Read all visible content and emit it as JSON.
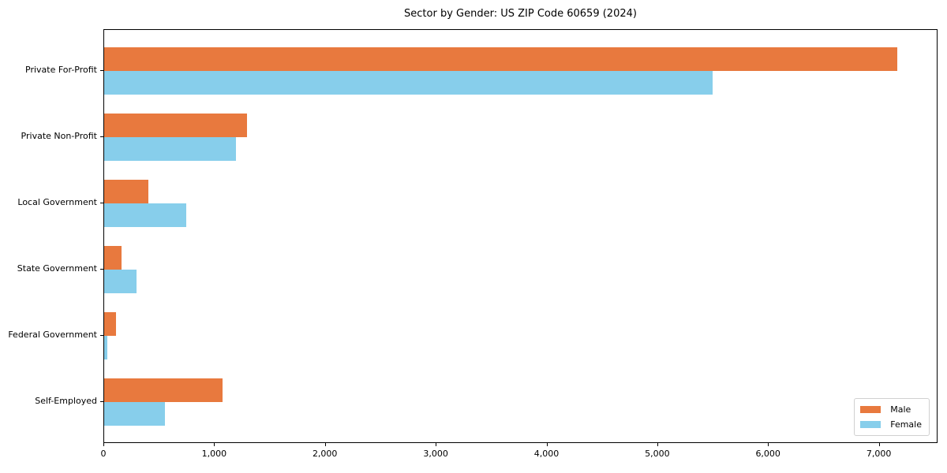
{
  "title": "Sector by Gender: US ZIP Code 60659 (2024)",
  "colors": {
    "male": "#E8793E",
    "female": "#87CEEB",
    "spine": "#000000",
    "legend_border": "#D0D0D0",
    "background": "#FFFFFF"
  },
  "chart_data": {
    "type": "bar",
    "orientation": "horizontal",
    "title": "Sector by Gender: US ZIP Code 60659 (2024)",
    "xlabel": "",
    "ylabel": "",
    "categories": [
      "Private For-Profit",
      "Private Non-Profit",
      "Local Government",
      "State Government",
      "Federal Government",
      "Self-Employed"
    ],
    "series": [
      {
        "name": "Male",
        "color": "#E8793E",
        "values": [
          7160,
          1290,
          400,
          155,
          105,
          1070
        ]
      },
      {
        "name": "Female",
        "color": "#87CEEB",
        "values": [
          5490,
          1190,
          740,
          290,
          25,
          545
        ]
      }
    ],
    "xlim": [
      0,
      7530
    ],
    "x_ticks": [
      0,
      1000,
      2000,
      3000,
      4000,
      5000,
      6000,
      7000
    ],
    "x_tick_labels": [
      "0",
      "1,000",
      "2,000",
      "3,000",
      "4,000",
      "5,000",
      "6,000",
      "7,000"
    ],
    "grid": false,
    "legend_position": "lower right"
  }
}
